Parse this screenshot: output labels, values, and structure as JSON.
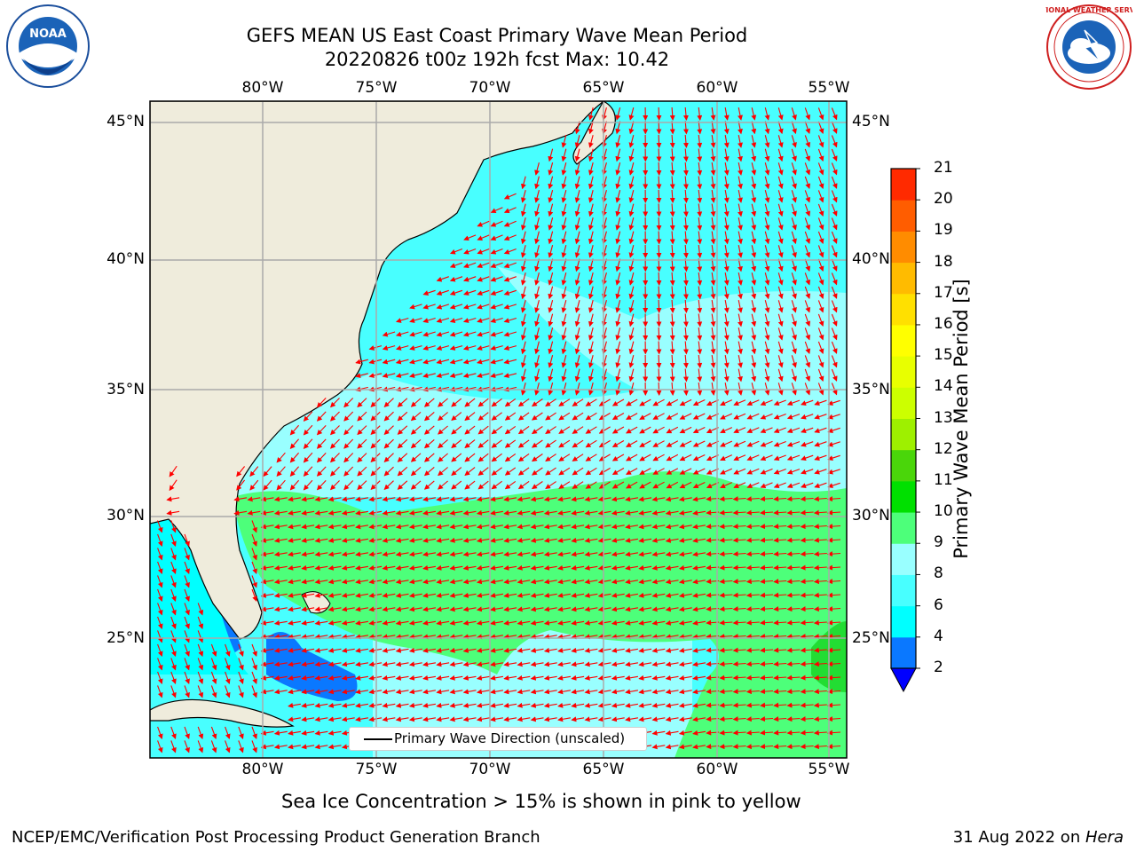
{
  "header": {
    "title_line1": "GEFS MEAN US East Coast Primary Wave Mean Period",
    "title_line2": "20220826 t00z 192h fcst   Max: 10.42"
  },
  "map": {
    "lon_labels": [
      "80°W",
      "75°W",
      "70°W",
      "65°W",
      "60°W",
      "55°W"
    ],
    "lat_labels": [
      "45°N",
      "40°N",
      "35°N",
      "30°N",
      "25°N"
    ],
    "legend_label": "Primary Wave Direction (unscaled)",
    "land_color": "#efecdc",
    "arrow_color": "#ff0000"
  },
  "colorbar": {
    "label": "Primary Wave Mean Period [s]",
    "ticks": [
      "2",
      "4",
      "6",
      "8",
      "9",
      "10",
      "11",
      "12",
      "13",
      "14",
      "15",
      "16",
      "17",
      "18",
      "19",
      "20",
      "21"
    ],
    "colors": [
      "#0a78ff",
      "#00ffff",
      "#48ffff",
      "#99ffff",
      "#4dff7a",
      "#00e000",
      "#4ad60a",
      "#9ef000",
      "#ccff00",
      "#e8ff00",
      "#ffff00",
      "#ffe000",
      "#ffbb00",
      "#ff8c00",
      "#ff5d00",
      "#ff2a00"
    ],
    "under_color": "#0000ff"
  },
  "notes": {
    "sea_ice": "Sea Ice Concentration > 15% is shown in pink to yellow"
  },
  "footer": {
    "left": "NCEP/EMC/Verification Post Processing Product Generation Branch",
    "right_date": "31 Aug 2022 on ",
    "right_machine": "Hera"
  },
  "logos": {
    "noaa_text": "NOAA",
    "nws_text": "NATIONAL WEATHER SERVICE"
  }
}
